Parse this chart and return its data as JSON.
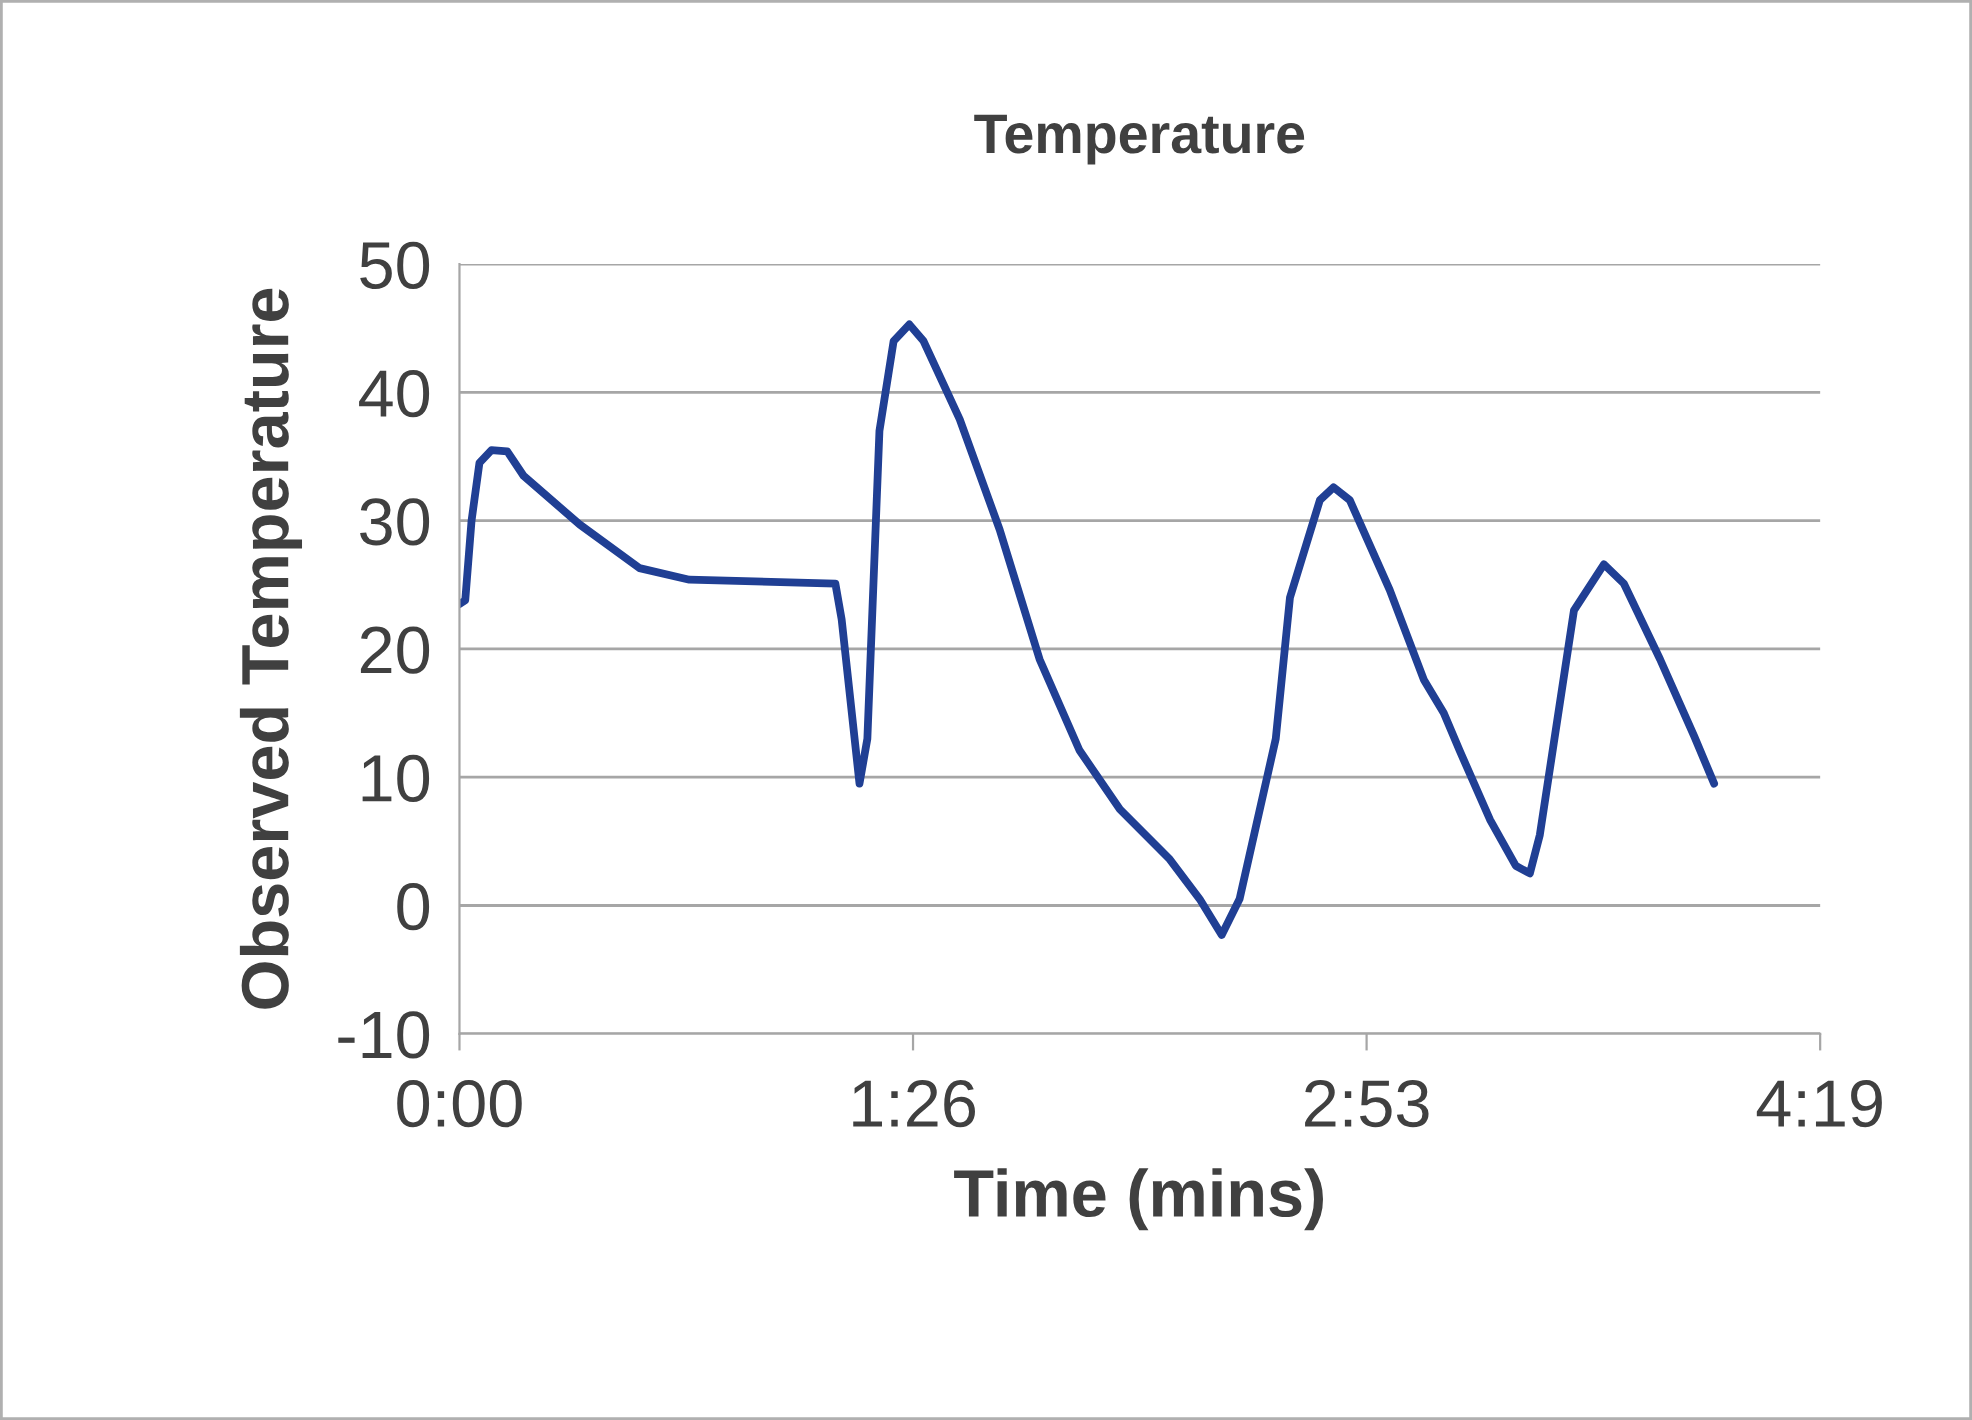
{
  "chart_data": {
    "type": "line",
    "title": "Temperature",
    "xlabel": "Time (mins)",
    "ylabel": "Observed Temperature",
    "xlim": [
      0,
      259.2
    ],
    "xticks": [
      {
        "value": 0,
        "label": "0:00"
      },
      {
        "value": 86.4,
        "label": "1:26"
      },
      {
        "value": 172.8,
        "label": "2:53"
      },
      {
        "value": 259.2,
        "label": "4:19"
      }
    ],
    "ylim": [
      -10,
      50
    ],
    "yticks": [
      -10,
      0,
      10,
      20,
      30,
      40,
      50
    ],
    "grid": "y",
    "marker": "none",
    "line_style": "solid",
    "series": [
      {
        "color": "#203f94",
        "x": [
          0,
          1.1,
          2.3,
          3.8,
          6.1,
          9.1,
          12.2,
          22.9,
          34.3,
          43.8,
          71.6,
          72.8,
          76.2,
          77.7,
          80,
          82.7,
          85.7,
          88.4,
          95.3,
          102.9,
          110.5,
          118.1,
          125.8,
          135.3,
          141,
          145.2,
          148.6,
          155.5,
          158.2,
          163.9,
          166.5,
          169.6,
          177.2,
          183.7,
          187.5,
          190.5,
          196.3,
          201.2,
          203.9,
          205.8,
          212.3,
          218,
          221.8,
          228.7,
          235.2,
          239
        ],
        "values": [
          23.5,
          23.8,
          30,
          34.5,
          35.5,
          35.4,
          33.5,
          29.7,
          26.3,
          25.4,
          25.1,
          22.3,
          9.5,
          13,
          37,
          44,
          45.3,
          44,
          37.9,
          29.3,
          19.2,
          12.1,
          7.5,
          3.6,
          0.5,
          -2.3,
          0.5,
          13,
          24,
          31.6,
          32.6,
          31.6,
          24.6,
          17.6,
          15,
          12.1,
          6.7,
          3.1,
          2.5,
          5.5,
          23,
          26.6,
          25.1,
          19.2,
          13.2,
          9.5
        ]
      }
    ]
  }
}
